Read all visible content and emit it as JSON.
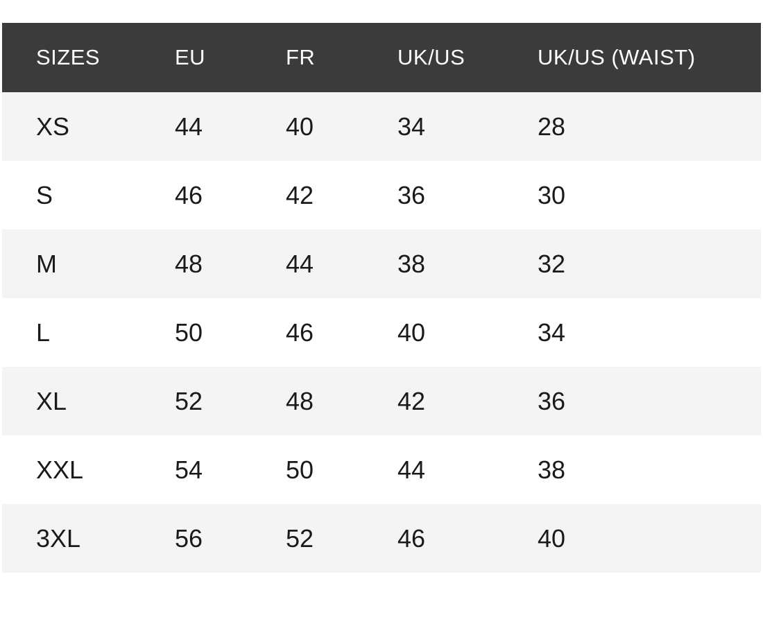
{
  "size_chart": {
    "columns": [
      "SIZES",
      "EU",
      "FR",
      "UK/US",
      "UK/US (WAIST)"
    ],
    "rows": [
      {
        "size": "XS",
        "eu": "44",
        "fr": "40",
        "uk_us": "34",
        "uk_us_waist": "28"
      },
      {
        "size": "S",
        "eu": "46",
        "fr": "42",
        "uk_us": "36",
        "uk_us_waist": "30"
      },
      {
        "size": "M",
        "eu": "48",
        "fr": "44",
        "uk_us": "38",
        "uk_us_waist": "32"
      },
      {
        "size": "L",
        "eu": "50",
        "fr": "46",
        "uk_us": "40",
        "uk_us_waist": "34"
      },
      {
        "size": "XL",
        "eu": "52",
        "fr": "48",
        "uk_us": "42",
        "uk_us_waist": "36"
      },
      {
        "size": "XXL",
        "eu": "54",
        "fr": "50",
        "uk_us": "44",
        "uk_us_waist": "38"
      },
      {
        "size": "3XL",
        "eu": "56",
        "fr": "52",
        "uk_us": "46",
        "uk_us_waist": "40"
      }
    ],
    "colors": {
      "header_background": "#3b3b3b",
      "header_text": "#ffffff",
      "row_stripe": "#f4f4f4",
      "row_white": "#ffffff",
      "data_text": "#1a1a1a",
      "page_background": "#ffffff"
    }
  },
  "chart_data": {
    "type": "table",
    "columns": [
      "SIZES",
      "EU",
      "FR",
      "UK/US",
      "UK/US (WAIST)"
    ],
    "rows": [
      [
        "XS",
        44,
        40,
        34,
        28
      ],
      [
        "S",
        46,
        42,
        36,
        30
      ],
      [
        "M",
        48,
        44,
        38,
        32
      ],
      [
        "L",
        50,
        46,
        40,
        34
      ],
      [
        "XL",
        52,
        48,
        42,
        36
      ],
      [
        "XXL",
        54,
        50,
        44,
        38
      ],
      [
        "3XL",
        56,
        52,
        46,
        40
      ]
    ],
    "layout": {
      "header_style": "dark-bar",
      "row_striping": "odd-rows-light-gray",
      "alignment": "left"
    }
  }
}
